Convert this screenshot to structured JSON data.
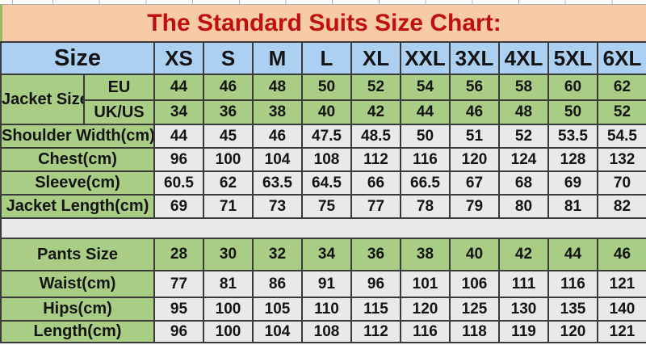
{
  "title": "The Standard Suits Size Chart:",
  "colors": {
    "title_red": "#bf0f0f",
    "value_red": "#e8211d",
    "green": "#a9cd85",
    "blue": "#abd0f1",
    "peach": "#f7cba6",
    "cell_gray": "#e9e9e9",
    "border": "#3a3a3a",
    "text_black": "#141414",
    "edge_green": "#94bd62",
    "tick_gray": "#b5b5b5"
  },
  "chart_data": {
    "type": "table",
    "title": "The Standard Suits Size Chart:",
    "corner_label": "Size",
    "columns": [
      "XS",
      "S",
      "M",
      "L",
      "XL",
      "XXL",
      "3XL",
      "4XL",
      "5XL",
      "6XL"
    ],
    "jacket_group_label": "Jacket Size",
    "rows": [
      {
        "label": "EU",
        "group": "jacket-size",
        "value_color": "red",
        "values": [
          44,
          46,
          48,
          50,
          52,
          54,
          56,
          58,
          60,
          62
        ]
      },
      {
        "label": "UK/US",
        "group": "jacket-size",
        "value_color": "red",
        "values": [
          34,
          36,
          38,
          40,
          42,
          44,
          46,
          48,
          50,
          52
        ]
      },
      {
        "label": "Shoulder Width(cm)",
        "group": "jacket",
        "value_color": "black",
        "values": [
          44,
          45,
          46,
          47.5,
          48.5,
          50,
          51,
          52,
          53.5,
          54.5
        ]
      },
      {
        "label": "Chest(cm)",
        "group": "jacket",
        "value_color": "black",
        "values": [
          96,
          100,
          104,
          108,
          112,
          116,
          120,
          124,
          128,
          132
        ]
      },
      {
        "label": "Sleeve(cm)",
        "group": "jacket",
        "value_color": "black",
        "values": [
          60.5,
          62,
          63.5,
          64.5,
          66,
          66.5,
          67,
          68,
          69,
          70
        ]
      },
      {
        "label": "Jacket Length(cm)",
        "group": "jacket",
        "value_color": "black",
        "values": [
          69,
          71,
          73,
          75,
          77,
          78,
          79,
          80,
          81,
          82
        ]
      },
      {
        "label": "Pants Size",
        "group": "pants",
        "value_color": "red",
        "values": [
          28,
          30,
          32,
          34,
          36,
          38,
          40,
          42,
          44,
          46
        ]
      },
      {
        "label": "Waist(cm)",
        "group": "pants",
        "value_color": "black",
        "values": [
          77,
          81,
          86,
          91,
          96,
          101,
          106,
          111,
          116,
          121
        ]
      },
      {
        "label": "Hips(cm)",
        "group": "pants",
        "value_color": "black",
        "values": [
          95,
          100,
          105,
          110,
          115,
          120,
          125,
          130,
          135,
          140
        ]
      },
      {
        "label": "Length(cm)",
        "group": "pants",
        "value_color": "black",
        "values": [
          96,
          100,
          104,
          108,
          112,
          116,
          118,
          119,
          120,
          121
        ]
      }
    ]
  }
}
